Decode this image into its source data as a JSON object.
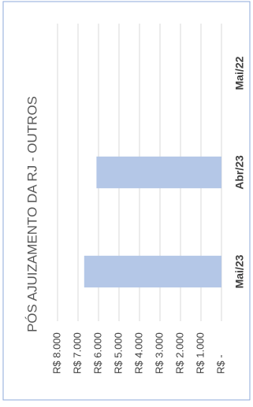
{
  "chart_data": {
    "type": "bar",
    "title": "PÓS AJUIZAMENTO DA RJ - OUTROS",
    "categories": [
      "Mai/23",
      "Abr/23",
      "Mai/22"
    ],
    "values": [
      6700,
      6100,
      0
    ],
    "color": "#b4c7e7",
    "ylim": [
      0,
      8000
    ],
    "yticks": [
      {
        "value": 0,
        "label": "R$ -"
      },
      {
        "value": 1000,
        "label": "R$ 1.000"
      },
      {
        "value": 2000,
        "label": "R$ 2.000"
      },
      {
        "value": 3000,
        "label": "R$ 3.000"
      },
      {
        "value": 4000,
        "label": "R$ 4.000"
      },
      {
        "value": 5000,
        "label": "R$ 5.000"
      },
      {
        "value": 6000,
        "label": "R$ 6.000"
      },
      {
        "value": 7000,
        "label": "R$ 7.000"
      },
      {
        "value": 8000,
        "label": "R$ 8.000"
      }
    ],
    "grid": true
  }
}
